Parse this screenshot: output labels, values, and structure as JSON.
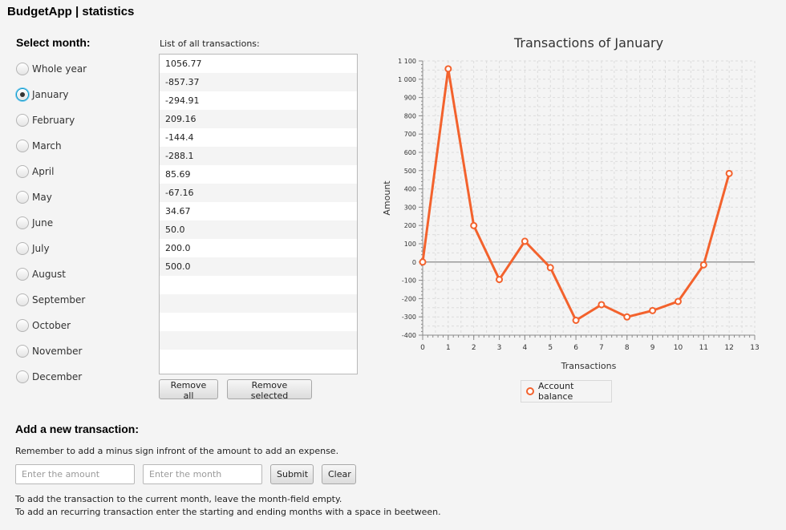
{
  "app": {
    "title": "BudgetApp | statistics"
  },
  "month_selector": {
    "heading": "Select month:",
    "selected_index": 1,
    "options": [
      "Whole year",
      "January",
      "February",
      "March",
      "April",
      "May",
      "June",
      "July",
      "August",
      "September",
      "October",
      "November",
      "December"
    ]
  },
  "transactions": {
    "caption": "List of all transactions:",
    "items": [
      "1056.77",
      "-857.37",
      "-294.91",
      "209.16",
      "-144.4",
      "-288.1",
      "85.69",
      "-67.16",
      "34.67",
      "50.0",
      "200.0",
      "500.0"
    ],
    "empty_rows": 5,
    "remove_all_label": "Remove all",
    "remove_selected_label": "Remove selected"
  },
  "add_transaction": {
    "heading": "Add a new transaction:",
    "minus_hint": "Remember to add a minus sign infront of the amount to add an expense.",
    "amount_placeholder": "Enter the amount",
    "month_placeholder": "Enter the month",
    "submit_label": "Submit",
    "clear_label": "Clear",
    "current_month_hint": "To add the transaction to the current month, leave the month-field empty.",
    "recurring_hint": "To add an recurring transaction enter the starting and ending months with a space in beetween."
  },
  "chart_data": {
    "type": "line",
    "title": "Transactions of January",
    "xlabel": "Transactions",
    "ylabel": "Amount",
    "xlim": [
      0,
      13
    ],
    "ylim": [
      -400,
      1100
    ],
    "x_ticks": [
      0,
      1,
      2,
      3,
      4,
      5,
      6,
      7,
      8,
      9,
      10,
      11,
      12,
      13
    ],
    "y_ticks": [
      -400,
      -300,
      -200,
      -100,
      0,
      100,
      200,
      300,
      400,
      500,
      600,
      700,
      800,
      900,
      1000,
      1100
    ],
    "y_tick_labels": [
      "-400",
      "-300",
      "-200",
      "-100",
      "0",
      "100",
      "200",
      "300",
      "400",
      "500",
      "600",
      "700",
      "800",
      "900",
      "1 000",
      "1 100"
    ],
    "grid": true,
    "legend_position": "bottom",
    "series": [
      {
        "name": "Account balance",
        "color": "#f3622d",
        "x": [
          0,
          1,
          2,
          3,
          4,
          5,
          6,
          7,
          8,
          9,
          10,
          11,
          12
        ],
        "y": [
          0,
          1056.77,
          199.4,
          -95.51,
          113.65,
          -30.75,
          -318.85,
          -233.16,
          -300.32,
          -265.65,
          -215.65,
          -15.65,
          484.35
        ]
      }
    ]
  }
}
